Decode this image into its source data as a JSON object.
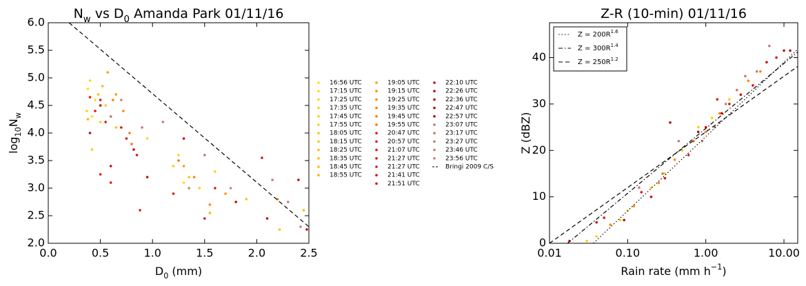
{
  "chart_data": [
    {
      "type": "scatter",
      "title": [
        {
          "text": "N"
        },
        {
          "text": "w",
          "sub": true
        },
        {
          "text": " vs D"
        },
        {
          "text": "0",
          "sub": true
        },
        {
          "text": " Amanda Park 01/11/16"
        }
      ],
      "xlabel": [
        {
          "text": "D"
        },
        {
          "text": "0",
          "sub": true
        },
        {
          "text": " (mm)"
        }
      ],
      "ylabel": [
        {
          "text": "log"
        },
        {
          "text": "10",
          "sub": true
        },
        {
          "text": "N"
        },
        {
          "text": "w",
          "sub": true
        }
      ],
      "xlim": [
        0,
        2.5
      ],
      "ylim": [
        2,
        6
      ],
      "xticks": [
        {
          "value": 0,
          "label": "0.0"
        },
        {
          "value": 0.5,
          "label": "0.5"
        },
        {
          "value": 1,
          "label": "1.0"
        },
        {
          "value": 1.5,
          "label": "1.5"
        },
        {
          "value": 2,
          "label": "2.0"
        },
        {
          "value": 2.5,
          "label": "2.5"
        }
      ],
      "yticks": [
        {
          "value": 2,
          "label": "2.0"
        },
        {
          "value": 2.5,
          "label": "2.5"
        },
        {
          "value": 3,
          "label": "3.0"
        },
        {
          "value": 3.5,
          "label": "3.5"
        },
        {
          "value": 4,
          "label": "4.0"
        },
        {
          "value": 4.5,
          "label": "4.5"
        },
        {
          "value": 5,
          "label": "5.0"
        },
        {
          "value": 5.5,
          "label": "5.5"
        },
        {
          "value": 6,
          "label": "6.0"
        }
      ],
      "series": [
        {
          "name": "16:56 UTC",
          "color": "#ffe000",
          "x": [
            0.38,
            0.42
          ],
          "y": [
            4.8,
            4.3
          ]
        },
        {
          "name": "17:15 UTC",
          "color": "#ffdc00",
          "x": [
            0.45,
            1.3
          ],
          "y": [
            4.6,
            3.1
          ]
        },
        {
          "name": "17:25 UTC",
          "color": "#ffd800",
          "x": [
            0.4,
            1.25
          ],
          "y": [
            4.95,
            3.6
          ]
        },
        {
          "name": "17:35 UTC",
          "color": "#ffd400",
          "x": [
            0.5,
            0.95
          ],
          "y": [
            4.2,
            3.9
          ]
        },
        {
          "name": "17:45 UTC",
          "color": "#ffd000",
          "x": [
            0.37,
            1.45
          ],
          "y": [
            4.4,
            3.0
          ]
        },
        {
          "name": "17:55 UTC",
          "color": "#ffcc00",
          "x": [
            0.42,
            1.6
          ],
          "y": [
            3.7,
            3.3
          ]
        },
        {
          "name": "18:05 UTC",
          "color": "#ffc800",
          "x": [
            0.55,
            1.2
          ],
          "y": [
            4.5,
            3.4
          ]
        },
        {
          "name": "18:15 UTC",
          "color": "#ffc400",
          "x": [
            0.6,
            1.9
          ],
          "y": [
            4.3,
            2.8
          ]
        },
        {
          "name": "18:25 UTC",
          "color": "#ffc000",
          "x": [
            0.48,
            2.22
          ],
          "y": [
            4.7,
            2.25
          ]
        },
        {
          "name": "18:35 UTC",
          "color": "#ffbc00",
          "x": [
            0.65,
            1.35
          ],
          "y": [
            4.1,
            3.2
          ]
        },
        {
          "name": "18:45 UTC",
          "color": "#ffb800",
          "x": [
            0.38,
            2.45
          ],
          "y": [
            4.25,
            2.6
          ]
        },
        {
          "name": "18:55 UTC",
          "color": "#ffb400",
          "x": [
            0.52,
            1.55
          ],
          "y": [
            4.85,
            2.55
          ]
        },
        {
          "name": "19:05 UTC",
          "color": "#ff9a00",
          "x": [
            0.57,
            1.3
          ],
          "y": [
            5.1,
            3.4
          ]
        },
        {
          "name": "19:15 UTC",
          "color": "#ff9000",
          "x": [
            0.65,
            1.7
          ],
          "y": [
            4.7,
            2.9
          ]
        },
        {
          "name": "19:25 UTC",
          "color": "#ff8800",
          "x": [
            0.72,
            1.55
          ],
          "y": [
            4.4,
            2.7
          ]
        },
        {
          "name": "19:35 UTC",
          "color": "#ff8000",
          "x": [
            0.62,
            1.4
          ],
          "y": [
            4.6,
            3.2
          ]
        },
        {
          "name": "19:45 UTC",
          "color": "#ff7800",
          "x": [
            0.78,
            2.2
          ],
          "y": [
            4.0,
            2.8
          ]
        },
        {
          "name": "19:55 UTC",
          "color": "#ff7000",
          "x": [
            0.8,
            1.25
          ],
          "y": [
            3.8,
            3.5
          ]
        },
        {
          "name": "20:47 UTC",
          "color": "#f01010",
          "x": [
            0.4,
            0.5
          ],
          "y": [
            4.65,
            3.25
          ]
        },
        {
          "name": "20:57 UTC",
          "color": "#ec1010",
          "x": [
            0.45,
            0.6
          ],
          "y": [
            4.4,
            3.1
          ]
        },
        {
          "name": "21:07 UTC",
          "color": "#e81010",
          "x": [
            0.55,
            0.88
          ],
          "y": [
            4.2,
            2.6
          ]
        },
        {
          "name": "21:27 UTC",
          "color": "#e41010",
          "x": [
            0.5,
            1.5
          ],
          "y": [
            4.6,
            2.45
          ]
        },
        {
          "name": "21:27 UTC",
          "color": "#e01010",
          "x": [
            0.7,
            1.6
          ],
          "y": [
            4.1,
            3.0
          ]
        },
        {
          "name": "21:41 UTC",
          "color": "#dc1010",
          "x": [
            0.75,
            2.05
          ],
          "y": [
            3.9,
            3.55
          ]
        },
        {
          "name": "21:51 UTC",
          "color": "#d81010",
          "x": [
            0.85,
            1.2
          ],
          "y": [
            3.6,
            2.9
          ]
        },
        {
          "name": "22:10 UTC",
          "color": "#c80808",
          "x": [
            0.4,
            1.3
          ],
          "y": [
            4.0,
            3.9
          ]
        },
        {
          "name": "22:26 UTC",
          "color": "#c40808",
          "x": [
            0.6,
            2.1
          ],
          "y": [
            3.4,
            2.45
          ]
        },
        {
          "name": "22:36 UTC",
          "color": "#c00808",
          "x": [
            0.5,
            2.4
          ],
          "y": [
            4.5,
            3.15
          ]
        },
        {
          "name": "22:47 UTC",
          "color": "#bc0808",
          "x": [
            0.82,
            1.8
          ],
          "y": [
            3.7,
            2.75
          ]
        },
        {
          "name": "22:57 UTC",
          "color": "#b80808",
          "x": [
            0.95,
            2.48
          ],
          "y": [
            3.2,
            2.25
          ]
        },
        {
          "name": "23:07 UTC",
          "color": "#c87070",
          "x": [
            0.6,
            1.5
          ],
          "y": [
            4.3,
            3.6
          ]
        },
        {
          "name": "23:17 UTC",
          "color": "#c87474",
          "x": [
            0.9,
            2.15
          ],
          "y": [
            4.1,
            3.15
          ]
        },
        {
          "name": "23:27 UTC",
          "color": "#c87878",
          "x": [
            1.1,
            2.3
          ],
          "y": [
            4.2,
            2.75
          ]
        },
        {
          "name": "23:46 UTC",
          "color": "#c87c7c",
          "x": [
            1.35,
            2.42
          ],
          "y": [
            3.0,
            2.3
          ]
        },
        {
          "name": "23:56 UTC",
          "color": "#c88080",
          "x": [
            0.7,
            1.75
          ],
          "y": [
            4.6,
            3.0
          ]
        },
        {
          "name": "Bringi 2009 C/S",
          "color": "#000000",
          "style": "dashed",
          "x": [
            0.2,
            2.5
          ],
          "y": [
            6.0,
            2.3
          ]
        }
      ]
    },
    {
      "type": "scatter",
      "log_x": true,
      "title": [
        {
          "text": "Z-R (10-min) 01/11/16"
        }
      ],
      "xlabel": [
        {
          "text": "Rain rate (mm h"
        },
        {
          "text": "−1",
          "sup": true
        },
        {
          "text": ")"
        }
      ],
      "ylabel": [
        {
          "text": "Z (dBZ)"
        }
      ],
      "xlim": [
        0.01,
        15
      ],
      "ylim": [
        0,
        47.5
      ],
      "xticks": [
        {
          "value": 0.01,
          "label": "0.01"
        },
        {
          "value": 0.1,
          "label": "0.10"
        },
        {
          "value": 1,
          "label": "1.00"
        },
        {
          "value": 10,
          "label": "10.00"
        }
      ],
      "yticks": [
        0,
        10,
        20,
        30,
        40
      ],
      "series": [
        {
          "color": "#ffcc00",
          "x": [
            0.03,
            0.04,
            0.08,
            0.1,
            0.2,
            0.3,
            0.5,
            0.8,
            1.2,
            2.0
          ],
          "y": [
            0.5,
            1.5,
            5,
            7,
            12,
            15,
            20,
            25,
            27,
            31
          ]
        },
        {
          "color": "#ff8800",
          "x": [
            0.06,
            0.12,
            0.25,
            0.4,
            0.7,
            1.0,
            1.5,
            2.5,
            3.5,
            5.0
          ],
          "y": [
            4,
            8,
            13,
            18,
            22,
            24,
            28,
            33,
            35,
            37
          ]
        },
        {
          "color": "#e01010",
          "x": [
            0.018,
            0.05,
            0.15,
            0.3,
            0.6,
            1.0,
            1.4,
            2.0,
            4.0,
            8.0
          ],
          "y": [
            0.5,
            5.5,
            11,
            14,
            19,
            25,
            31,
            30,
            34,
            40
          ]
        },
        {
          "color": "#c00808",
          "x": [
            0.04,
            0.09,
            0.2,
            0.35,
            0.8,
            1.6,
            2.8,
            6,
            10,
            12
          ],
          "y": [
            4.5,
            5,
            10,
            26,
            24,
            28,
            32,
            39,
            41.5,
            41.5
          ]
        },
        {
          "color": "#c87878",
          "x": [
            0.14,
            0.28,
            0.45,
            0.9,
            1.3,
            1.8,
            2.5,
            3.2,
            4.5,
            6.5
          ],
          "y": [
            12,
            15,
            22,
            22,
            25,
            30,
            33,
            36,
            37,
            42.5
          ]
        },
        {
          "name": [
            {
              "text": "Z = 200R"
            },
            {
              "text": "1.6",
              "sup": true
            }
          ],
          "color": "#000000",
          "style": "dotted",
          "x": [
            0.0365,
            15
          ],
          "y": [
            0,
            41.8
          ]
        },
        {
          "name": [
            {
              "text": "Z = 300R"
            },
            {
              "text": "1.4",
              "sup": true
            }
          ],
          "color": "#000000",
          "style": "dashdot",
          "x": [
            0.017,
            15
          ],
          "y": [
            0,
            41.2
          ]
        },
        {
          "name": [
            {
              "text": "Z = 250R"
            },
            {
              "text": "1.2",
              "sup": true
            }
          ],
          "color": "#000000",
          "style": "dashed",
          "x": [
            0.01,
            15
          ],
          "y": [
            0,
            38.1
          ]
        }
      ]
    }
  ]
}
